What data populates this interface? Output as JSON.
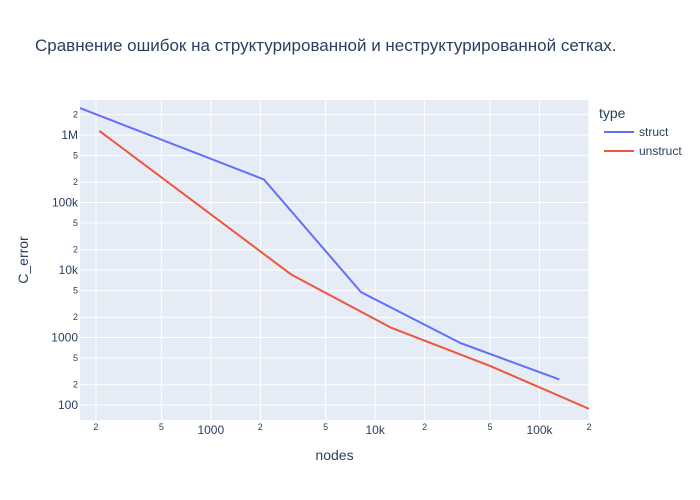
{
  "chart_data": {
    "type": "line",
    "title": "Сравнение ошибок на структурированной и неструктурированной сетках.",
    "xlabel": "nodes",
    "ylabel": "C_error",
    "x_scale": "log",
    "y_scale": "log",
    "xlim": [
      160,
      200000
    ],
    "ylim": [
      60,
      3300000
    ],
    "grid": true,
    "legend_title": "type",
    "legend_position": "right",
    "x_major_ticks": [
      {
        "value": 1000,
        "label": "1000"
      },
      {
        "value": 10000,
        "label": "10k"
      },
      {
        "value": 100000,
        "label": "100k"
      }
    ],
    "x_minor_ticks": [
      {
        "value": 200,
        "label": "2"
      },
      {
        "value": 500,
        "label": "5"
      },
      {
        "value": 2000,
        "label": "2"
      },
      {
        "value": 5000,
        "label": "5"
      },
      {
        "value": 20000,
        "label": "2"
      },
      {
        "value": 50000,
        "label": "5"
      },
      {
        "value": 200000,
        "label": "2"
      }
    ],
    "y_major_ticks": [
      {
        "value": 100,
        "label": "100"
      },
      {
        "value": 1000,
        "label": "1000"
      },
      {
        "value": 10000,
        "label": "10k"
      },
      {
        "value": 100000,
        "label": "100k"
      },
      {
        "value": 1000000,
        "label": "1M"
      }
    ],
    "y_minor_ticks": [
      {
        "value": 200,
        "label": "2"
      },
      {
        "value": 500,
        "label": "5"
      },
      {
        "value": 2000,
        "label": "2"
      },
      {
        "value": 5000,
        "label": "5"
      },
      {
        "value": 20000,
        "label": "2"
      },
      {
        "value": 50000,
        "label": "5"
      },
      {
        "value": 200000,
        "label": "2"
      },
      {
        "value": 500000,
        "label": "5"
      },
      {
        "value": 2000000,
        "label": "2"
      }
    ],
    "series": [
      {
        "name": "struct",
        "color": "#636efa",
        "x": [
          160,
          2100,
          8200,
          33000,
          132000
        ],
        "y": [
          2500000,
          220000,
          4700,
          830,
          240
        ]
      },
      {
        "name": "unstruct",
        "color": "#ef553b",
        "x": [
          210,
          3100,
          12500,
          50000,
          200000
        ],
        "y": [
          1150000,
          8500,
          1400,
          380,
          88
        ]
      }
    ]
  }
}
